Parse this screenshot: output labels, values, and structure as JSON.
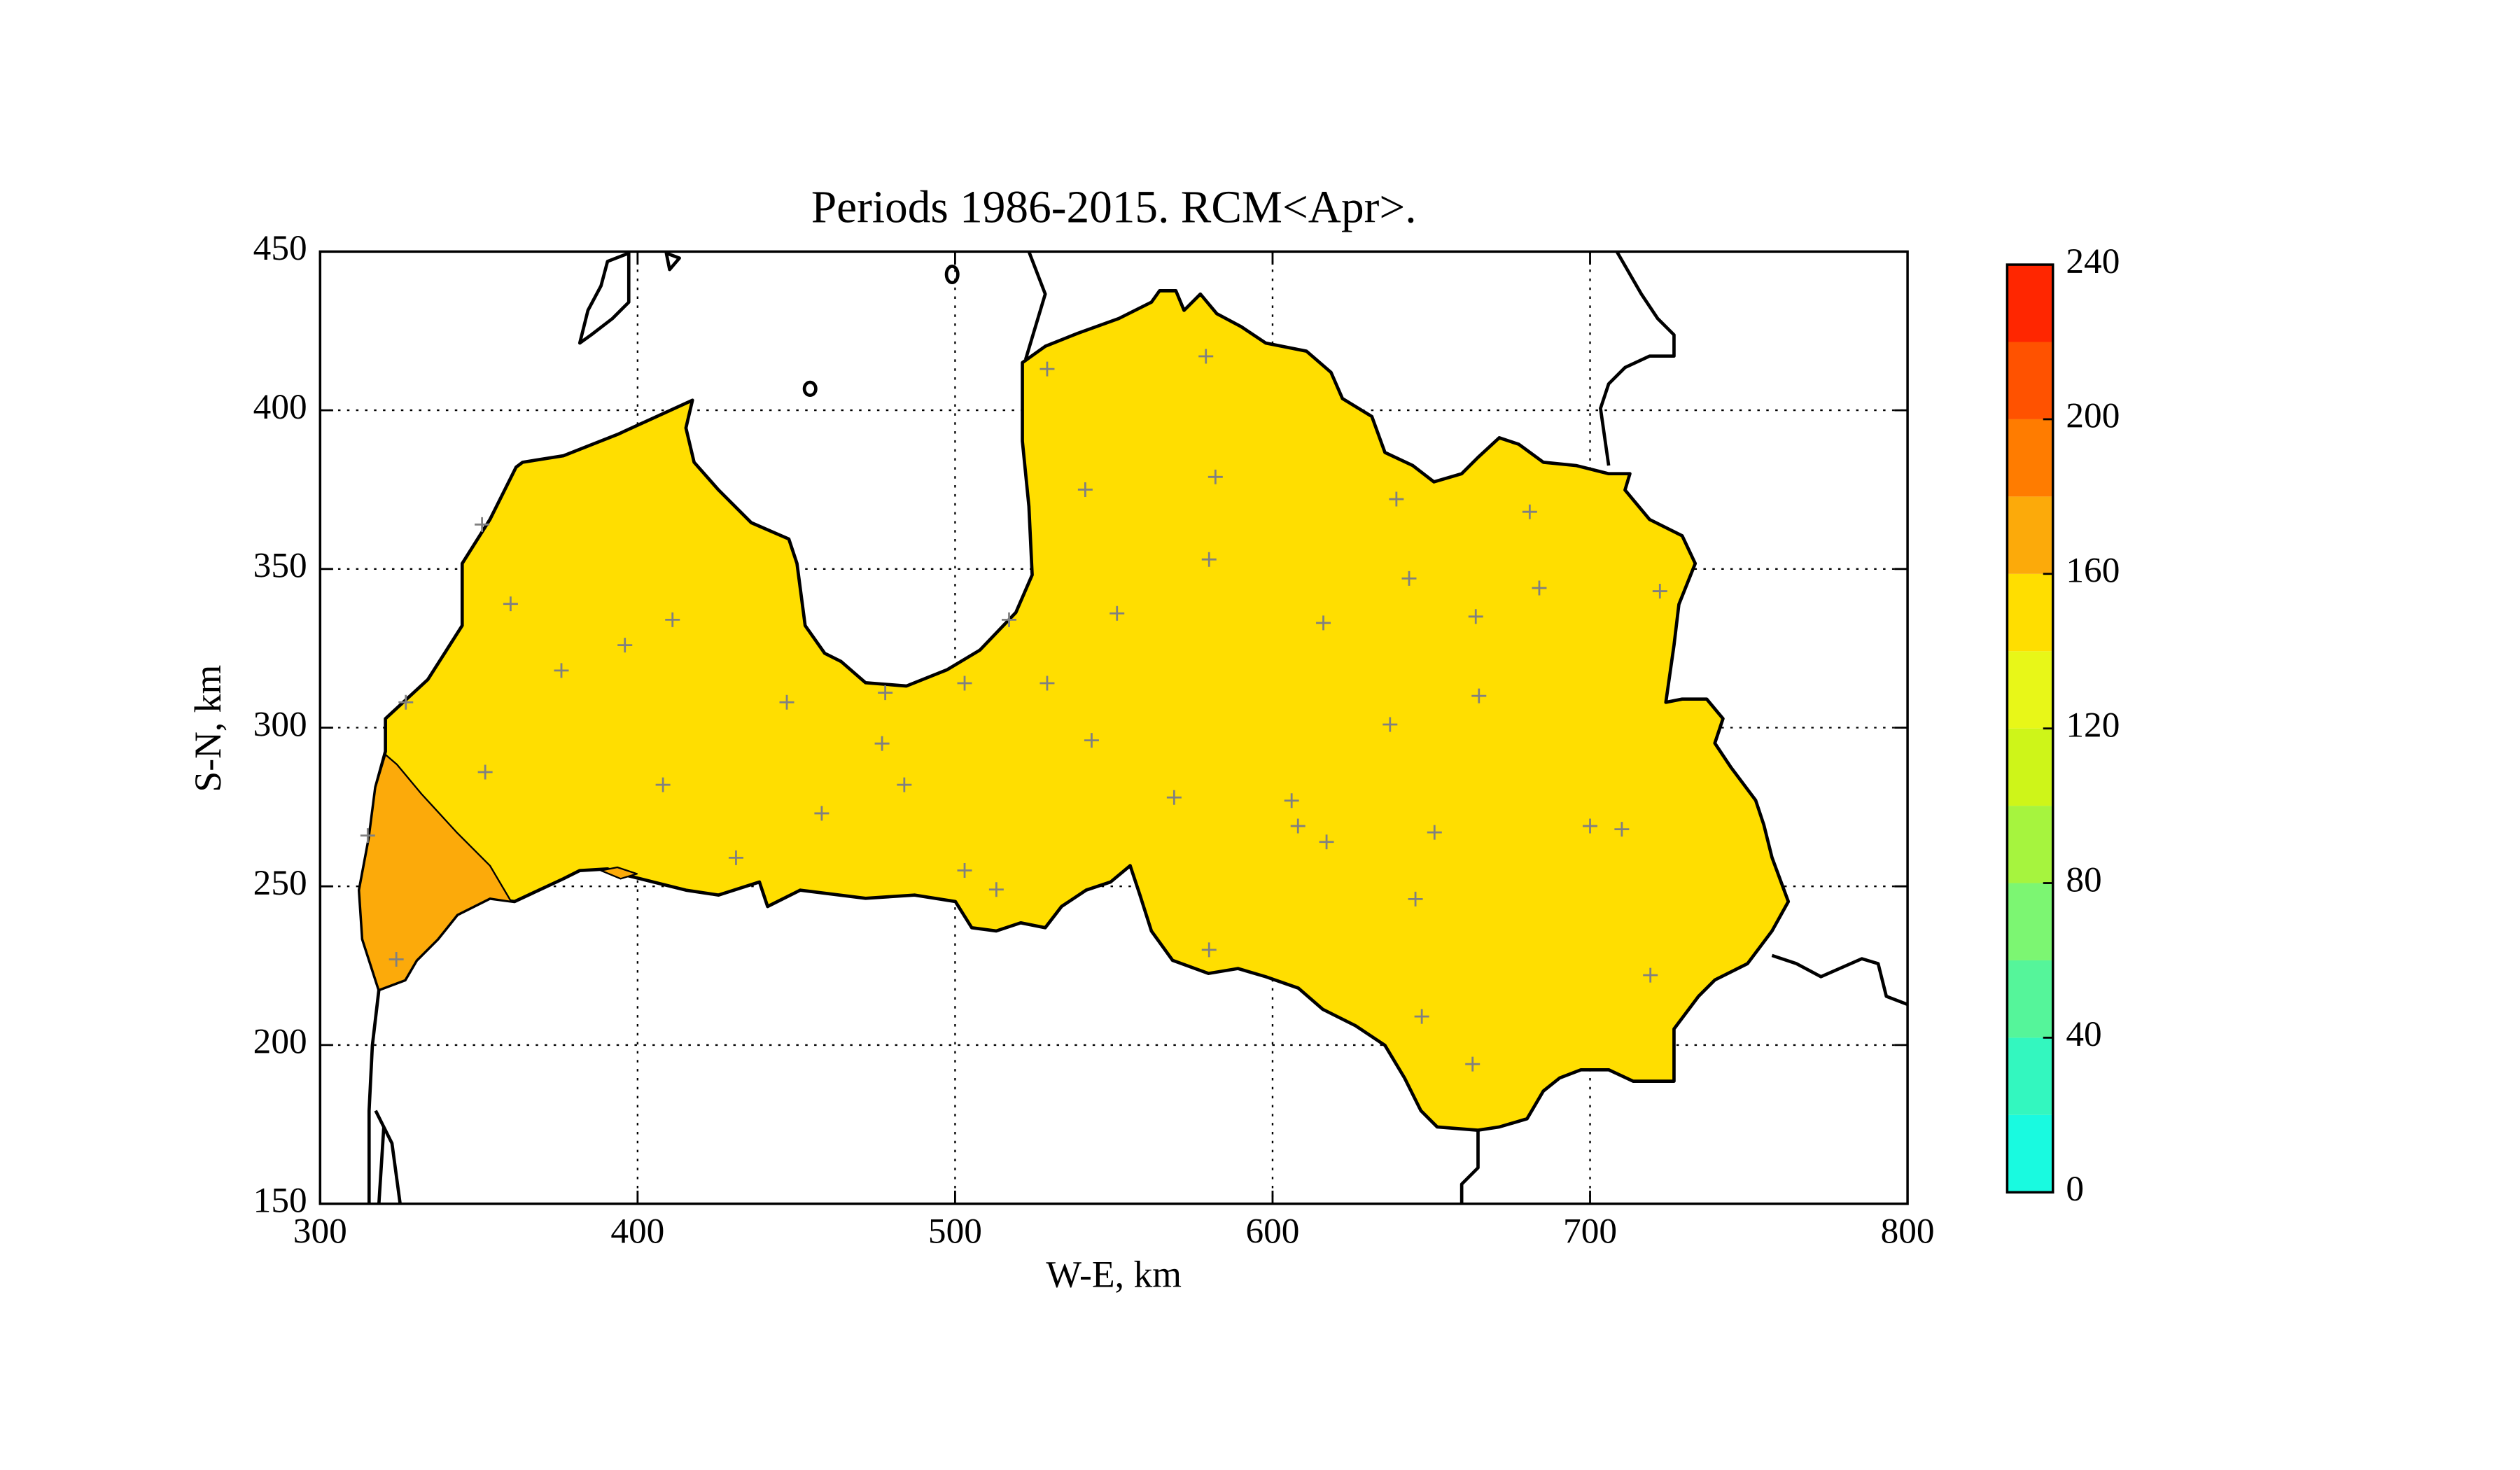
{
  "chart_data": {
    "type": "contour-map",
    "title": "Periods 1986-2015. RCM<Apr>.",
    "xlabel": "W-E, km",
    "ylabel": "S-N, km",
    "xlim": [
      300,
      800
    ],
    "ylim": [
      150,
      450
    ],
    "xticks": [
      300,
      400,
      500,
      600,
      700,
      800
    ],
    "yticks": [
      150,
      200,
      250,
      300,
      350,
      400,
      450
    ],
    "grid": true,
    "stations": {
      "x": [
        351,
        360,
        376,
        396,
        411,
        352,
        408,
        431,
        447,
        458,
        478,
        477,
        484,
        503,
        503,
        513,
        517,
        529,
        529,
        543,
        541,
        551,
        569,
        579,
        582,
        580,
        580,
        606,
        608,
        617,
        616,
        639,
        643,
        637,
        645,
        651,
        664,
        665,
        647,
        663,
        681,
        684,
        700,
        710,
        722,
        719,
        324,
        315,
        327
      ],
      "y": [
        364,
        339,
        318,
        326,
        334,
        286,
        282,
        259,
        308,
        273,
        311,
        295,
        282,
        314,
        255,
        249,
        334,
        413,
        314,
        296,
        375,
        336,
        278,
        417,
        379,
        353,
        230,
        277,
        269,
        264,
        333,
        372,
        347,
        301,
        246,
        267,
        335,
        310,
        209,
        194,
        368,
        344,
        269,
        268,
        343,
        222,
        227,
        266,
        308
      ]
    },
    "colorbar": {
      "levels": [
        0,
        20,
        40,
        60,
        80,
        100,
        120,
        140,
        160,
        180,
        200,
        220,
        240
      ],
      "colors": [
        "#19fae0",
        "#33f7bf",
        "#55f59a",
        "#7cf672",
        "#a6f43e",
        "#cef519",
        "#e8f718",
        "#ffde00",
        "#fcaa0a",
        "#ff7c00",
        "#ff5200",
        "#ff2600",
        "#d10000"
      ],
      "ticks": [
        0,
        40,
        80,
        120,
        160,
        200,
        240
      ]
    }
  }
}
